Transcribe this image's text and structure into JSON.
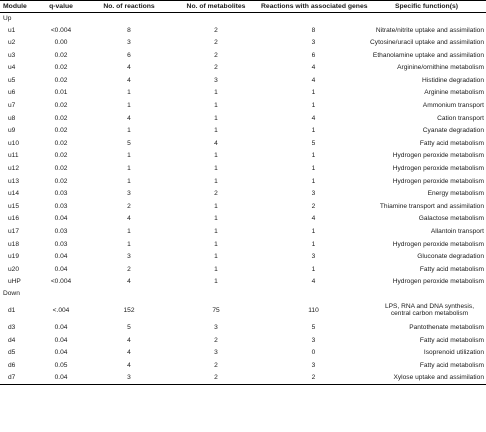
{
  "headers": {
    "module": "Module",
    "qvalue": "q-value",
    "reactions": "No. of reactions",
    "metabolites": "No. of metabolites",
    "genes": "Reactions with associated genes",
    "function": "Specific function(s)"
  },
  "groups": [
    {
      "label": "Up",
      "rows": [
        {
          "module": "u1",
          "q": "<0.004",
          "reactions": "8",
          "metabolites": "2",
          "genes": "8",
          "function": "Nitrate/nitrite uptake and assimilation"
        },
        {
          "module": "u2",
          "q": "0.00",
          "reactions": "3",
          "metabolites": "2",
          "genes": "3",
          "function": "Cytosine/uracil uptake and assimilation"
        },
        {
          "module": "u3",
          "q": "0.02",
          "reactions": "6",
          "metabolites": "2",
          "genes": "6",
          "function": "Ethanolamine uptake and assimilation"
        },
        {
          "module": "u4",
          "q": "0.02",
          "reactions": "4",
          "metabolites": "2",
          "genes": "4",
          "function": "Arginine/ornithine metabolism"
        },
        {
          "module": "u5",
          "q": "0.02",
          "reactions": "4",
          "metabolites": "3",
          "genes": "4",
          "function": "Histidine degradation"
        },
        {
          "module": "u6",
          "q": "0.01",
          "reactions": "1",
          "metabolites": "1",
          "genes": "1",
          "function": "Arginine metabolism"
        },
        {
          "module": "u7",
          "q": "0.02",
          "reactions": "1",
          "metabolites": "1",
          "genes": "1",
          "function": "Ammonium transport"
        },
        {
          "module": "u8",
          "q": "0.02",
          "reactions": "4",
          "metabolites": "1",
          "genes": "4",
          "function": "Cation transport"
        },
        {
          "module": "u9",
          "q": "0.02",
          "reactions": "1",
          "metabolites": "1",
          "genes": "1",
          "function": "Cyanate degradation"
        },
        {
          "module": "u10",
          "q": "0.02",
          "reactions": "5",
          "metabolites": "4",
          "genes": "5",
          "function": "Fatty acid metabolism"
        },
        {
          "module": "u11",
          "q": "0.02",
          "reactions": "1",
          "metabolites": "1",
          "genes": "1",
          "function": "Hydrogen peroxide metabolism"
        },
        {
          "module": "u12",
          "q": "0.02",
          "reactions": "1",
          "metabolites": "1",
          "genes": "1",
          "function": "Hydrogen peroxide metabolism"
        },
        {
          "module": "u13",
          "q": "0.02",
          "reactions": "1",
          "metabolites": "1",
          "genes": "1",
          "function": "Hydrogen peroxide metabolism"
        },
        {
          "module": "u14",
          "q": "0.03",
          "reactions": "3",
          "metabolites": "2",
          "genes": "3",
          "function": "Energy metabolism"
        },
        {
          "module": "u15",
          "q": "0.03",
          "reactions": "2",
          "metabolites": "1",
          "genes": "2",
          "function": "Thiamine transport and assimilation"
        },
        {
          "module": "u16",
          "q": "0.04",
          "reactions": "4",
          "metabolites": "1",
          "genes": "4",
          "function": "Galactose metabolism"
        },
        {
          "module": "u17",
          "q": "0.03",
          "reactions": "1",
          "metabolites": "1",
          "genes": "1",
          "function": "Allantoin transport"
        },
        {
          "module": "u18",
          "q": "0.03",
          "reactions": "1",
          "metabolites": "1",
          "genes": "1",
          "function": "Hydrogen peroxide metabolism"
        },
        {
          "module": "u19",
          "q": "0.04",
          "reactions": "3",
          "metabolites": "1",
          "genes": "3",
          "function": "Gluconate degradation"
        },
        {
          "module": "u20",
          "q": "0.04",
          "reactions": "2",
          "metabolites": "1",
          "genes": "1",
          "function": "Fatty acid metabolism"
        },
        {
          "module": "uHP",
          "q": "<0.004",
          "reactions": "4",
          "metabolites": "1",
          "genes": "4",
          "function": "Hydrogen peroxide metabolism"
        }
      ]
    },
    {
      "label": "Down",
      "rows": [
        {
          "module": "d1",
          "q": "<.004",
          "reactions": "152",
          "metabolites": "75",
          "genes": "110",
          "function": "LPS, RNA and DNA synthesis, central carbon metabolism"
        },
        {
          "module": "d3",
          "q": "0.04",
          "reactions": "5",
          "metabolites": "3",
          "genes": "5",
          "function": "Pantothenate metabolism"
        },
        {
          "module": "d4",
          "q": "0.04",
          "reactions": "4",
          "metabolites": "2",
          "genes": "3",
          "function": "Fatty acid metabolism"
        },
        {
          "module": "d5",
          "q": "0.04",
          "reactions": "4",
          "metabolites": "3",
          "genes": "0",
          "function": "Isoprenoid utilization"
        },
        {
          "module": "d6",
          "q": "0.05",
          "reactions": "4",
          "metabolites": "2",
          "genes": "3",
          "function": "Fatty acid metabolism"
        },
        {
          "module": "d7",
          "q": "0.04",
          "reactions": "3",
          "metabolites": "2",
          "genes": "2",
          "function": "Xylose uptake and assimilation"
        }
      ]
    }
  ]
}
